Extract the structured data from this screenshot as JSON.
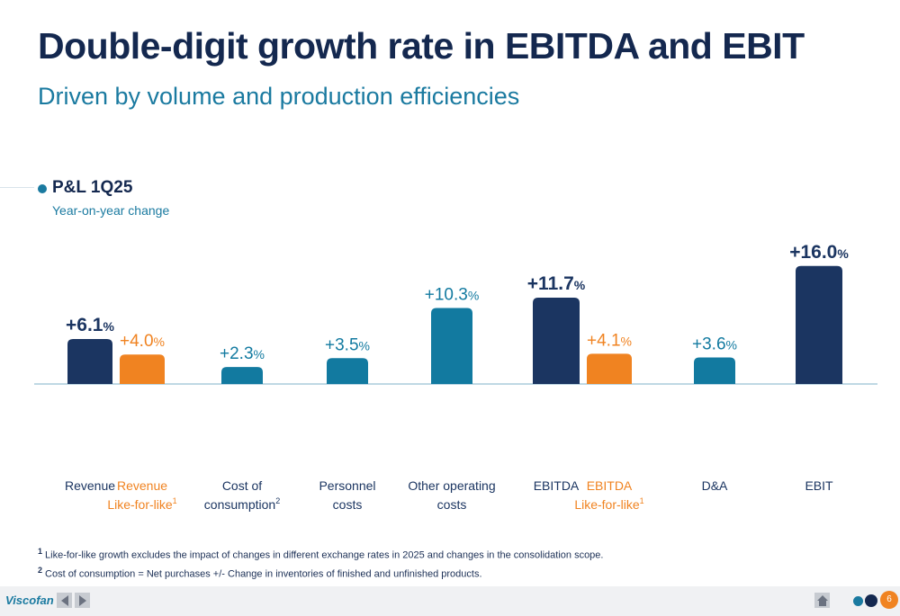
{
  "header": {
    "title": "Double-digit growth rate in EBITDA and EBIT",
    "subtitle": "Driven by volume and production efficiencies"
  },
  "section": {
    "title": "P&L 1Q25",
    "subtitle": "Year-on-year change"
  },
  "colors": {
    "navy": "#1b3561",
    "teal": "#127aa0",
    "orange": "#f08321"
  },
  "chart_data": {
    "type": "bar",
    "title": "P&L 1Q25",
    "subtitle": "Year-on-year change",
    "unit": "%",
    "categories": [
      {
        "label": [
          "Revenue"
        ],
        "sup": "",
        "color": "navy",
        "value": 6.1,
        "value_label": "+6.1",
        "bold": true
      },
      {
        "label": [
          "Revenue",
          "Like-for-like"
        ],
        "sup": "1",
        "color": "orange",
        "value": 4.0,
        "value_label": "+4.0",
        "bold": false
      },
      {
        "label": [
          "Cost of",
          "consumption"
        ],
        "sup": "2",
        "color": "teal",
        "value": 2.3,
        "value_label": "+2.3",
        "bold": false
      },
      {
        "label": [
          "Personnel",
          "costs"
        ],
        "sup": "",
        "color": "teal",
        "value": 3.5,
        "value_label": "+3.5",
        "bold": false
      },
      {
        "label": [
          "Other operating",
          "costs"
        ],
        "sup": "",
        "color": "teal",
        "value": 10.3,
        "value_label": "+10.3",
        "bold": false
      },
      {
        "label": [
          "EBITDA"
        ],
        "sup": "",
        "color": "navy",
        "value": 11.7,
        "value_label": "+11.7",
        "bold": true
      },
      {
        "label": [
          "EBITDA",
          "Like-for-like"
        ],
        "sup": "1",
        "color": "orange",
        "value": 4.1,
        "value_label": "+4.1",
        "bold": false
      },
      {
        "label": [
          "D&A"
        ],
        "sup": "",
        "color": "teal",
        "value": 3.6,
        "value_label": "+3.6",
        "bold": false
      },
      {
        "label": [
          "EBIT"
        ],
        "sup": "",
        "color": "navy",
        "value": 16.0,
        "value_label": "+16.0",
        "bold": true
      }
    ],
    "ylim": [
      0,
      16
    ]
  },
  "footnotes": [
    {
      "num": "1",
      "text": "Like-for-like growth excludes the impact of changes in different exchange rates in 2025 and changes in the consolidation scope."
    },
    {
      "num": "2",
      "text": "Cost of consumption = Net purchases +/- Change in inventories of finished and unfinished products."
    }
  ],
  "footer": {
    "logo": "Viscofan",
    "page": "6",
    "prev_icon": "chevron-left-icon",
    "next_icon": "chevron-right-icon",
    "home_icon": "home-icon"
  }
}
